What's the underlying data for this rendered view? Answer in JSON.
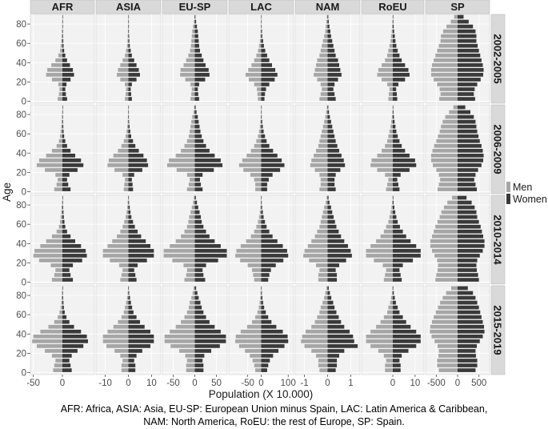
{
  "chart_data": {
    "type": "bar",
    "subtype": "population-pyramid-grid",
    "xlabel": "Population (X 10.000)",
    "ylabel": "Age",
    "columns": [
      "AFR",
      "ASIA",
      "EU-SP",
      "LAC",
      "NAM",
      "RoEU",
      "SP"
    ],
    "rows": [
      "2002-2005",
      "2006-2009",
      "2010-2014",
      "2015-2019"
    ],
    "age_groups": [
      "0-4",
      "5-9",
      "10-14",
      "15-19",
      "20-24",
      "25-29",
      "30-34",
      "35-39",
      "40-44",
      "45-49",
      "50-54",
      "55-59",
      "60-64",
      "65-69",
      "70-74",
      "75-79",
      "80-84",
      "85-89"
    ],
    "y_ticks": [
      0,
      20,
      40,
      60,
      80
    ],
    "y_tick_labels": [
      "0",
      "20",
      "40",
      "60",
      "80"
    ],
    "column_xlim": [
      [
        -55,
        55
      ],
      [
        -14,
        14
      ],
      [
        -75,
        75
      ],
      [
        -120,
        120
      ],
      [
        -1.4,
        1.4
      ],
      [
        -14,
        14
      ],
      [
        -750,
        750
      ]
    ],
    "column_ticks": [
      [
        -50,
        0
      ],
      [
        -10,
        0,
        10
      ],
      [
        -50,
        0,
        50
      ],
      [
        -50,
        0,
        100
      ],
      [
        -1,
        0,
        1
      ],
      [
        0,
        10
      ],
      [
        -500,
        0,
        500
      ]
    ],
    "column_tick_labels": [
      [
        "-50",
        "0"
      ],
      [
        "-10",
        "0",
        "10"
      ],
      [
        "-50",
        "0",
        "50"
      ],
      [
        "-50",
        "0",
        "100"
      ],
      [
        "-1",
        "0",
        "1"
      ],
      [
        "0",
        "10"
      ],
      [
        "-500",
        "0",
        "500"
      ]
    ],
    "legend": {
      "title": "",
      "placement": "right",
      "items": [
        {
          "name": "Men",
          "color": "#a6a6a6"
        },
        {
          "name": "Women",
          "color": "#3a3a3a"
        }
      ]
    },
    "series": [
      {
        "name": "Men",
        "side": "left",
        "color": "#a6a6a6"
      },
      {
        "name": "Women",
        "side": "right",
        "color": "#3a3a3a"
      }
    ],
    "note": "Each panel: Men values extend left (negative), Women values extend right. values[row][column][age_group].",
    "men": [
      [
        [
          8,
          6,
          5,
          7,
          18,
          28,
          26,
          19,
          12,
          7,
          4,
          3,
          2,
          1.5,
          1,
          0.5,
          0.4,
          0.2
        ],
        [
          1.5,
          1.2,
          1,
          1.5,
          3.5,
          5,
          4.5,
          3.5,
          2.5,
          1.5,
          1,
          0.6,
          0.4,
          0.3,
          0.2,
          0.15,
          0.1,
          0.05
        ],
        [
          10,
          8,
          7,
          10,
          22,
          34,
          33,
          26,
          20,
          15,
          11,
          9,
          8,
          7,
          6,
          4,
          2,
          1
        ],
        [
          12,
          14,
          16,
          26,
          46,
          58,
          48,
          36,
          26,
          18,
          12,
          8,
          5,
          3,
          2,
          1,
          0.5,
          0.3
        ],
        [
          0.35,
          0.3,
          0.25,
          0.3,
          0.45,
          0.6,
          0.55,
          0.5,
          0.45,
          0.35,
          0.3,
          0.25,
          0.2,
          0.15,
          0.1,
          0.08,
          0.05,
          0.03
        ],
        [
          2,
          1.8,
          1.5,
          2.5,
          5,
          7,
          6.5,
          5,
          3.5,
          2.5,
          2,
          1.5,
          1,
          0.8,
          0.5,
          0.3,
          0.2,
          0.1
        ],
        [
          430,
          400,
          420,
          480,
          560,
          620,
          620,
          600,
          560,
          520,
          480,
          440,
          400,
          390,
          340,
          260,
          160,
          80
        ]
      ],
      [
        [
          14,
          10,
          8,
          12,
          30,
          44,
          40,
          28,
          18,
          10,
          6,
          4,
          3,
          2,
          1.5,
          1,
          0.5,
          0.2
        ],
        [
          2,
          1.8,
          1.5,
          2.5,
          6,
          9,
          8.5,
          6.5,
          4.5,
          3,
          2,
          1.2,
          0.8,
          0.5,
          0.3,
          0.2,
          0.1,
          0.05
        ],
        [
          18,
          14,
          12,
          18,
          42,
          64,
          60,
          44,
          32,
          24,
          18,
          14,
          12,
          10,
          8,
          6,
          3,
          1.5
        ],
        [
          22,
          22,
          26,
          40,
          66,
          82,
          70,
          54,
          38,
          26,
          18,
          12,
          8,
          5,
          3,
          1.5,
          0.8,
          0.4
        ],
        [
          0.35,
          0.3,
          0.3,
          0.35,
          0.55,
          0.75,
          0.7,
          0.6,
          0.5,
          0.4,
          0.35,
          0.3,
          0.25,
          0.2,
          0.15,
          0.1,
          0.06,
          0.03
        ],
        [
          3,
          2.5,
          2,
          3.5,
          7,
          10,
          9.5,
          7,
          5,
          3.5,
          2.5,
          2,
          1.5,
          1,
          0.7,
          0.4,
          0.2,
          0.1
        ],
        [
          470,
          440,
          410,
          440,
          500,
          580,
          620,
          620,
          590,
          550,
          500,
          460,
          420,
          390,
          350,
          290,
          200,
          100
        ]
      ],
      [
        [
          18,
          14,
          12,
          20,
          40,
          50,
          48,
          38,
          28,
          18,
          10,
          6,
          4,
          3,
          2,
          1.5,
          0.8,
          0.3
        ],
        [
          3.5,
          3,
          2.5,
          4,
          8,
          11,
          11,
          9,
          7,
          5,
          3.5,
          2.5,
          1.8,
          1.2,
          0.8,
          0.5,
          0.3,
          0.15
        ],
        [
          24,
          20,
          18,
          26,
          52,
          72,
          72,
          58,
          44,
          32,
          24,
          18,
          15,
          13,
          10,
          7,
          4,
          2
        ],
        [
          26,
          30,
          34,
          50,
          78,
          96,
          92,
          76,
          56,
          38,
          26,
          18,
          12,
          8,
          5,
          3,
          1.5,
          0.6
        ],
        [
          0.4,
          0.4,
          0.35,
          0.5,
          0.8,
          1.05,
          1.0,
          0.85,
          0.7,
          0.55,
          0.45,
          0.35,
          0.3,
          0.25,
          0.2,
          0.15,
          0.08,
          0.04
        ],
        [
          4,
          3.5,
          3,
          4.5,
          8.5,
          12,
          12,
          10,
          7.5,
          5.5,
          4,
          3,
          2,
          1.5,
          1,
          0.6,
          0.3,
          0.15
        ],
        [
          520,
          500,
          470,
          460,
          480,
          540,
          600,
          640,
          640,
          600,
          560,
          520,
          470,
          420,
          380,
          320,
          240,
          130
        ]
      ],
      [
        [
          16,
          14,
          12,
          18,
          30,
          44,
          52,
          50,
          38,
          24,
          14,
          8,
          5,
          3,
          2,
          1.5,
          1,
          0.4
        ],
        [
          3,
          3,
          2.5,
          3.5,
          6,
          9.5,
          11,
          11,
          9,
          6.5,
          4.5,
          3,
          2,
          1.5,
          1,
          0.6,
          0.3,
          0.15
        ],
        [
          20,
          20,
          18,
          22,
          36,
          56,
          70,
          70,
          58,
          44,
          32,
          24,
          18,
          14,
          12,
          8,
          5,
          2.5
        ],
        [
          22,
          26,
          32,
          42,
          60,
          82,
          96,
          94,
          76,
          52,
          34,
          22,
          14,
          9,
          6,
          3.5,
          2,
          0.8
        ],
        [
          0.35,
          0.4,
          0.4,
          0.5,
          0.7,
          1.0,
          1.15,
          1.1,
          0.95,
          0.7,
          0.55,
          0.45,
          0.35,
          0.3,
          0.22,
          0.15,
          0.1,
          0.05
        ],
        [
          3.5,
          3.5,
          3,
          4,
          6.5,
          10,
          12,
          12,
          10,
          7.5,
          5.5,
          4,
          2.5,
          2,
          1.2,
          0.8,
          0.4,
          0.2
        ],
        [
          440,
          480,
          480,
          450,
          440,
          470,
          540,
          610,
          650,
          640,
          600,
          560,
          510,
          460,
          410,
          350,
          270,
          150
        ]
      ]
    ],
    "women": [
      [
        [
          8,
          6,
          5,
          7,
          14,
          20,
          18,
          13,
          8,
          5,
          3,
          2,
          1.5,
          1,
          0.8,
          0.5,
          0.3,
          0.15
        ],
        [
          1.5,
          1.2,
          1,
          1.5,
          3.5,
          5,
          4.5,
          3.5,
          2.5,
          1.5,
          1,
          0.6,
          0.4,
          0.3,
          0.2,
          0.15,
          0.1,
          0.05
        ],
        [
          10,
          8,
          7,
          10,
          24,
          34,
          32,
          25,
          20,
          16,
          12,
          10,
          9,
          8,
          7,
          5,
          3,
          1.5
        ],
        [
          12,
          14,
          18,
          30,
          50,
          60,
          52,
          40,
          30,
          22,
          15,
          10,
          7,
          4,
          3,
          1.5,
          0.8,
          0.4
        ],
        [
          0.35,
          0.3,
          0.25,
          0.3,
          0.45,
          0.6,
          0.55,
          0.5,
          0.45,
          0.35,
          0.3,
          0.25,
          0.2,
          0.15,
          0.12,
          0.08,
          0.05,
          0.03
        ],
        [
          2,
          1.8,
          1.5,
          2.5,
          5.5,
          7.5,
          7,
          5.5,
          4,
          3,
          2.2,
          1.6,
          1.2,
          0.9,
          0.6,
          0.4,
          0.25,
          0.1
        ],
        [
          410,
          380,
          400,
          460,
          540,
          600,
          610,
          590,
          560,
          530,
          500,
          470,
          440,
          440,
          420,
          360,
          260,
          140
        ]
      ],
      [
        [
          14,
          10,
          8,
          12,
          26,
          36,
          32,
          22,
          14,
          8,
          5,
          3,
          2,
          1.5,
          1,
          0.6,
          0.4,
          0.15
        ],
        [
          2,
          1.8,
          1.5,
          2.5,
          6,
          8.5,
          8,
          6.5,
          4.5,
          3,
          2,
          1.2,
          0.8,
          0.5,
          0.3,
          0.2,
          0.1,
          0.05
        ],
        [
          18,
          14,
          12,
          18,
          44,
          64,
          60,
          46,
          34,
          26,
          20,
          16,
          13,
          11,
          9,
          7,
          4,
          2
        ],
        [
          22,
          22,
          28,
          42,
          70,
          86,
          76,
          60,
          44,
          30,
          20,
          14,
          9,
          6,
          4,
          2,
          1,
          0.5
        ],
        [
          0.35,
          0.3,
          0.3,
          0.35,
          0.55,
          0.75,
          0.7,
          0.6,
          0.5,
          0.42,
          0.35,
          0.3,
          0.25,
          0.2,
          0.15,
          0.1,
          0.06,
          0.03
        ],
        [
          3,
          2.5,
          2,
          3.5,
          7.5,
          10.5,
          10,
          7.5,
          5.5,
          4,
          3,
          2.2,
          1.6,
          1.2,
          0.8,
          0.5,
          0.3,
          0.12
        ],
        [
          450,
          420,
          390,
          420,
          480,
          560,
          600,
          610,
          590,
          560,
          520,
          490,
          460,
          440,
          420,
          380,
          300,
          180
        ]
      ],
      [
        [
          18,
          14,
          12,
          18,
          34,
          42,
          40,
          32,
          22,
          14,
          8,
          5,
          3.5,
          2.5,
          1.8,
          1.2,
          0.6,
          0.25
        ],
        [
          3.5,
          3,
          2.5,
          4,
          8,
          11,
          11,
          9.5,
          7.5,
          5.5,
          4,
          2.8,
          2,
          1.3,
          0.9,
          0.6,
          0.3,
          0.15
        ],
        [
          24,
          20,
          18,
          26,
          54,
          74,
          74,
          60,
          46,
          34,
          26,
          20,
          16,
          14,
          11,
          8,
          5,
          2.5
        ],
        [
          26,
          30,
          36,
          54,
          82,
          100,
          96,
          80,
          60,
          42,
          30,
          20,
          14,
          9,
          6,
          3.5,
          2,
          0.8
        ],
        [
          0.4,
          0.4,
          0.35,
          0.5,
          0.8,
          1.05,
          1.0,
          0.88,
          0.72,
          0.58,
          0.48,
          0.38,
          0.32,
          0.26,
          0.2,
          0.15,
          0.08,
          0.04
        ],
        [
          4,
          3.5,
          3,
          4.5,
          9,
          12.5,
          12.5,
          10.5,
          8,
          6,
          4.5,
          3.2,
          2.2,
          1.6,
          1.1,
          0.7,
          0.35,
          0.15
        ],
        [
          500,
          480,
          450,
          440,
          460,
          520,
          590,
          630,
          630,
          600,
          570,
          540,
          500,
          460,
          440,
          400,
          330,
          210
        ]
      ],
      [
        [
          16,
          14,
          12,
          16,
          26,
          36,
          44,
          42,
          32,
          20,
          12,
          7,
          4,
          2.5,
          1.8,
          1.2,
          0.8,
          0.3
        ],
        [
          3,
          3,
          2.5,
          3.5,
          6,
          9.5,
          11,
          11,
          9.5,
          7,
          5,
          3.5,
          2.2,
          1.6,
          1.1,
          0.7,
          0.35,
          0.15
        ],
        [
          20,
          20,
          18,
          22,
          38,
          58,
          72,
          72,
          60,
          46,
          34,
          26,
          20,
          16,
          13,
          9,
          6,
          3
        ],
        [
          22,
          26,
          32,
          44,
          64,
          86,
          100,
          98,
          80,
          56,
          38,
          26,
          17,
          11,
          7,
          4.5,
          2.5,
          1
        ],
        [
          0.35,
          0.4,
          0.4,
          0.5,
          0.72,
          1.3,
          1.15,
          1.1,
          0.95,
          0.72,
          0.58,
          0.48,
          0.38,
          0.3,
          0.24,
          0.16,
          0.1,
          0.05
        ],
        [
          3.5,
          3.5,
          3,
          4,
          7,
          10.5,
          12.5,
          12.5,
          10.5,
          8,
          6,
          4.5,
          3,
          2.2,
          1.4,
          0.9,
          0.45,
          0.2
        ],
        [
          420,
          460,
          460,
          430,
          420,
          450,
          520,
          590,
          630,
          620,
          590,
          560,
          530,
          500,
          460,
          420,
          360,
          240
        ]
      ]
    ]
  },
  "caption": {
    "line1": "AFR: Africa, ASIA: Asia,  EU-SP: European Union minus Spain, LAC: Latin America & Caribbean,",
    "line2": "NAM: North America, RoEU: the rest of Europe, SP: Spain."
  }
}
